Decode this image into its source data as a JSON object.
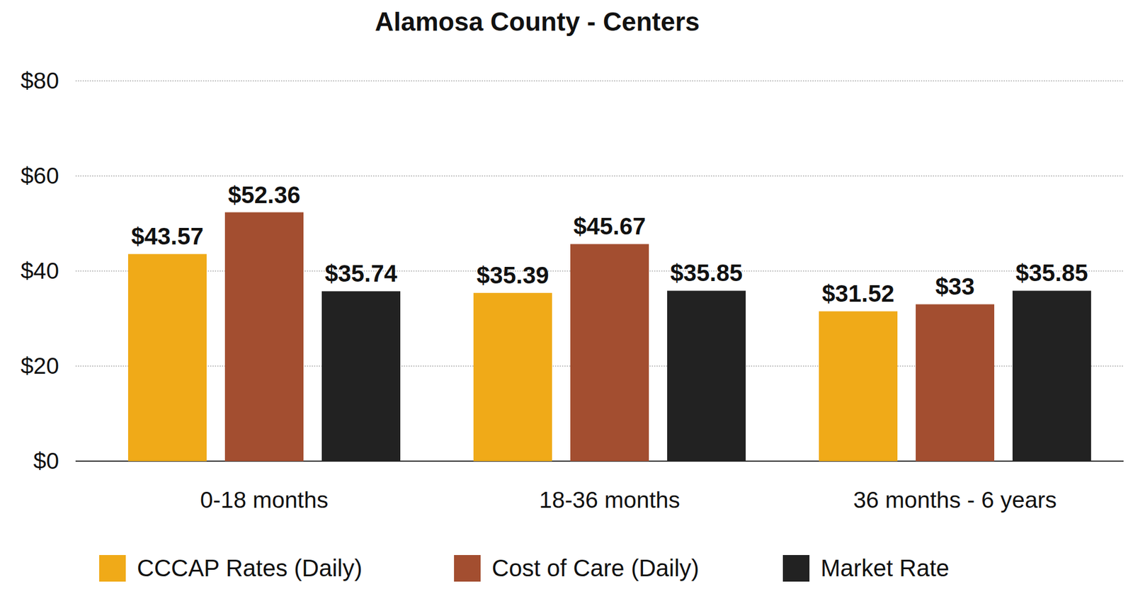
{
  "chart_data": {
    "type": "bar",
    "title": "Alamosa County - Centers",
    "categories": [
      "0-18 months",
      "18-36 months",
      "36 months - 6 years"
    ],
    "series": [
      {
        "name": "CCCAP Rates (Daily)",
        "color": "#f0aa18",
        "values": [
          43.57,
          35.39,
          31.52
        ],
        "value_labels": [
          "$43.57",
          "$35.39",
          "$31.52"
        ]
      },
      {
        "name": "Cost of Care (Daily)",
        "color": "#a34e30",
        "values": [
          52.36,
          45.67,
          33
        ],
        "value_labels": [
          "$52.36",
          "$45.67",
          "$33"
        ]
      },
      {
        "name": "Market Rate",
        "color": "#222222",
        "values": [
          35.74,
          35.85,
          35.85
        ],
        "value_labels": [
          "$35.74",
          "$35.85",
          "$35.85"
        ]
      }
    ],
    "ylim": [
      0,
      80
    ],
    "yticks": [
      {
        "value": 0,
        "label": "$0"
      },
      {
        "value": 20,
        "label": "$20"
      },
      {
        "value": 40,
        "label": "$40"
      },
      {
        "value": 60,
        "label": "$60"
      },
      {
        "value": 80,
        "label": "$80"
      }
    ],
    "grid": true,
    "data_labels": true,
    "legend": "bottom"
  }
}
